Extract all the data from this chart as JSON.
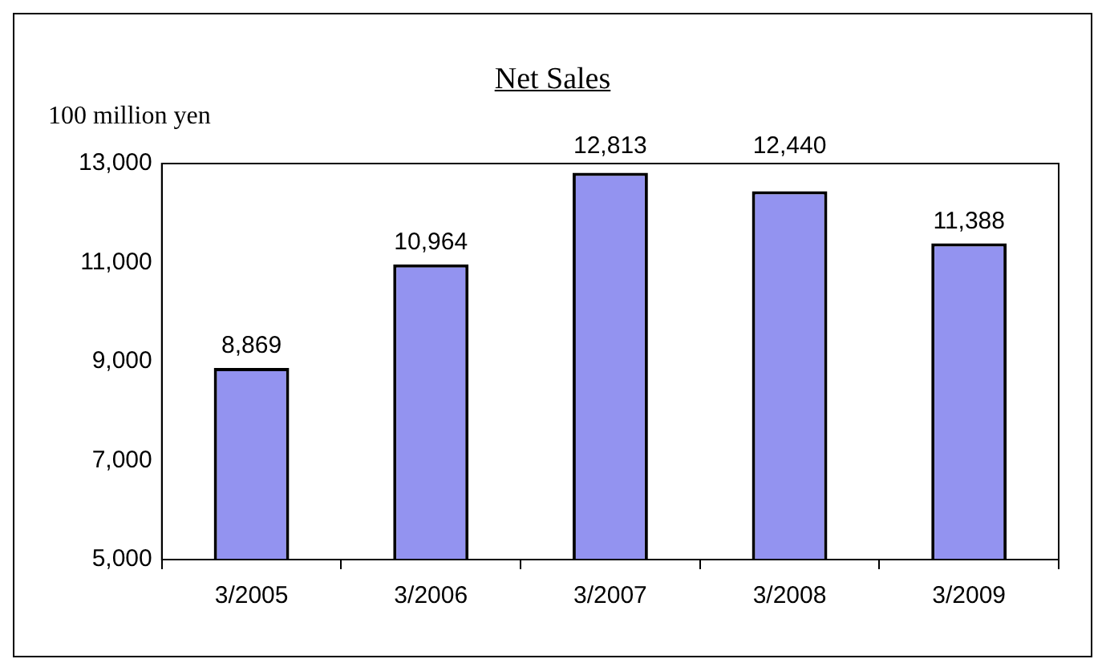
{
  "chart_data": {
    "type": "bar",
    "title": "Net Sales",
    "ylabel": "100 million yen",
    "categories": [
      "3/2005",
      "3/2006",
      "3/2007",
      "3/2008",
      "3/2009"
    ],
    "values": [
      8869,
      10964,
      12813,
      12440,
      11388
    ],
    "color": "#9393f0",
    "value_labels": [
      "8,869",
      "10,964",
      "12,813",
      "12,440",
      "11,388"
    ],
    "ylim": [
      5000,
      13000
    ],
    "yticks": [
      {
        "value": 5000,
        "label": "5,000"
      },
      {
        "value": 7000,
        "label": "7,000"
      },
      {
        "value": 9000,
        "label": "9,000"
      },
      {
        "value": 11000,
        "label": "11,000"
      },
      {
        "value": 13000,
        "label": "13,000"
      }
    ],
    "grid": false,
    "legend": false
  }
}
